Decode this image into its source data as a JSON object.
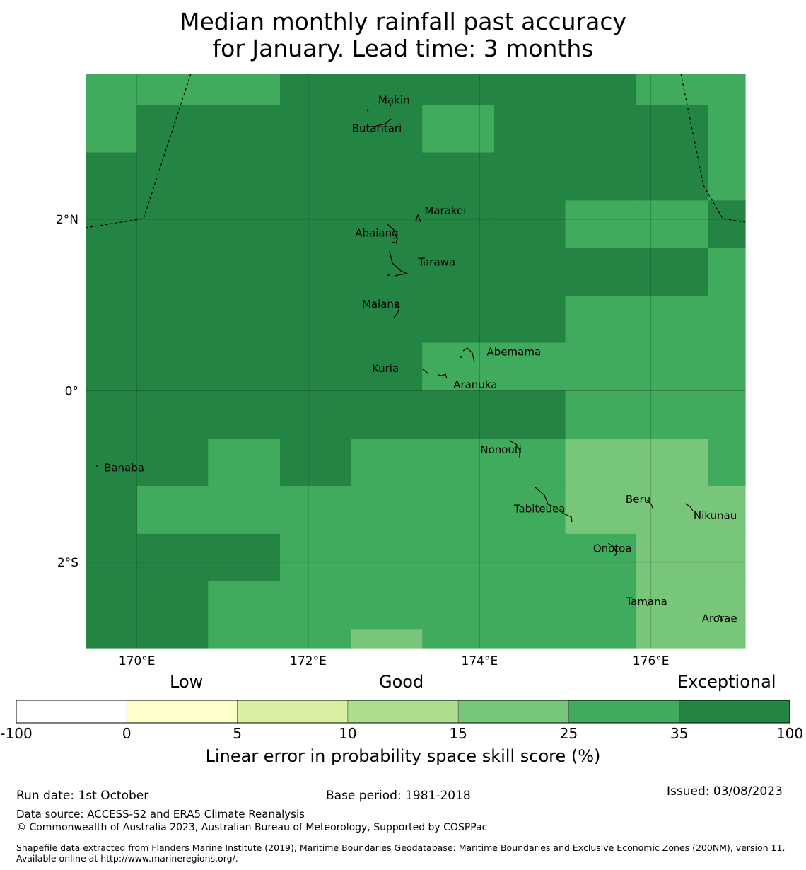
{
  "title_line1": "Median monthly rainfall past accuracy",
  "title_line2": "for January. Lead time: 3 months",
  "map": {
    "lon_range": [
      169.4,
      177.1
    ],
    "lat_range": [
      -3.0,
      3.7
    ],
    "lon_ticks": [
      170,
      172,
      174,
      176
    ],
    "lat_ticks": [
      2,
      0,
      -2
    ],
    "lon_tick_labels": [
      "170°E",
      "172°E",
      "174°E",
      "176°E"
    ],
    "lat_tick_labels": [
      "2°N",
      "0°",
      "2°S"
    ],
    "cell_lon_edges": [
      169.4,
      170.0,
      170.83,
      171.67,
      172.5,
      173.33,
      174.17,
      175.0,
      175.83,
      176.67,
      177.1
    ],
    "cell_lat_edges": [
      3.7,
      3.33,
      2.78,
      2.22,
      1.67,
      1.11,
      0.56,
      0.0,
      -0.56,
      -1.11,
      -1.67,
      -2.22,
      -2.78,
      -3.0
    ],
    "skill_grid": [
      [
        35,
        35,
        35,
        100,
        100,
        100,
        100,
        100,
        35,
        35
      ],
      [
        35,
        100,
        100,
        100,
        100,
        35,
        100,
        100,
        100,
        35
      ],
      [
        100,
        100,
        100,
        100,
        100,
        100,
        100,
        100,
        100,
        35
      ],
      [
        100,
        100,
        100,
        100,
        100,
        100,
        100,
        35,
        35,
        100
      ],
      [
        100,
        100,
        100,
        100,
        100,
        100,
        100,
        100,
        100,
        35
      ],
      [
        100,
        100,
        100,
        100,
        100,
        100,
        100,
        35,
        35,
        35
      ],
      [
        100,
        100,
        100,
        100,
        100,
        35,
        35,
        35,
        35,
        35
      ],
      [
        100,
        100,
        100,
        100,
        100,
        100,
        100,
        35,
        35,
        35
      ],
      [
        100,
        100,
        35,
        100,
        35,
        35,
        35,
        25,
        25,
        35
      ],
      [
        100,
        35,
        35,
        35,
        35,
        35,
        35,
        25,
        25,
        25
      ],
      [
        100,
        100,
        100,
        35,
        35,
        35,
        35,
        35,
        25,
        25
      ],
      [
        100,
        100,
        35,
        35,
        35,
        35,
        35,
        35,
        25,
        25
      ],
      [
        100,
        100,
        35,
        35,
        25,
        35,
        35,
        35,
        25,
        25
      ]
    ],
    "islands": [
      {
        "name": "Makin",
        "lon": 173.0,
        "lat": 3.35
      },
      {
        "name": "Butaritari",
        "lon": 172.8,
        "lat": 3.02
      },
      {
        "name": "Marakei",
        "lon": 173.6,
        "lat": 2.06
      },
      {
        "name": "Abaiang",
        "lon": 172.8,
        "lat": 1.8
      },
      {
        "name": "Tarawa",
        "lon": 173.5,
        "lat": 1.46
      },
      {
        "name": "Maiana",
        "lon": 172.85,
        "lat": 0.97
      },
      {
        "name": "Abemama",
        "lon": 174.4,
        "lat": 0.41
      },
      {
        "name": "Kuria",
        "lon": 172.9,
        "lat": 0.22
      },
      {
        "name": "Aranuka",
        "lon": 173.95,
        "lat": 0.03
      },
      {
        "name": "Nonouti",
        "lon": 174.25,
        "lat": -0.73
      },
      {
        "name": "Banaba",
        "lon": 169.85,
        "lat": -0.94
      },
      {
        "name": "Beru",
        "lon": 175.85,
        "lat": -1.31
      },
      {
        "name": "Tabiteuea",
        "lon": 174.7,
        "lat": -1.42
      },
      {
        "name": "Nikunau",
        "lon": 176.75,
        "lat": -1.5
      },
      {
        "name": "Onotoa",
        "lon": 175.55,
        "lat": -1.88
      },
      {
        "name": "Tamana",
        "lon": 175.95,
        "lat": -2.5
      },
      {
        "name": "Arorae",
        "lon": 176.8,
        "lat": -2.7
      }
    ]
  },
  "colorbar": {
    "category_low": "Low",
    "category_good": "Good",
    "category_exceptional": "Exceptional",
    "ticks": [
      "-100",
      "0",
      "5",
      "10",
      "15",
      "25",
      "35",
      "100"
    ],
    "colors": [
      "#ffffff",
      "#ffffcc",
      "#d9f0a3",
      "#addd8e",
      "#78c679",
      "#41ab5d",
      "#238443"
    ],
    "label": "Linear error in probability space skill score (%)"
  },
  "color_by_value": {
    "25": "#78c679",
    "35": "#41ab5d",
    "100": "#238443"
  },
  "footer": {
    "run_date": "Run date: 1st October",
    "base_period": "Base period: 1981-2018",
    "issued": "Issued: 03/08/2023",
    "data_source": "Data source: ACCESS-S2 and ERA5 Climate Reanalysis",
    "copyright": "© Commonwealth of Australia 2023, Australian Bureau of Meteorology, Supported by COSPPac",
    "shapefile": "Shapefile data extracted from Flanders Marine Institute (2019), Maritime Boundaries Geodatabase: Maritime Boundaries and Exclusive Economic Zones (200NM), version 11. Available online at http://www.marineregions.org/."
  }
}
